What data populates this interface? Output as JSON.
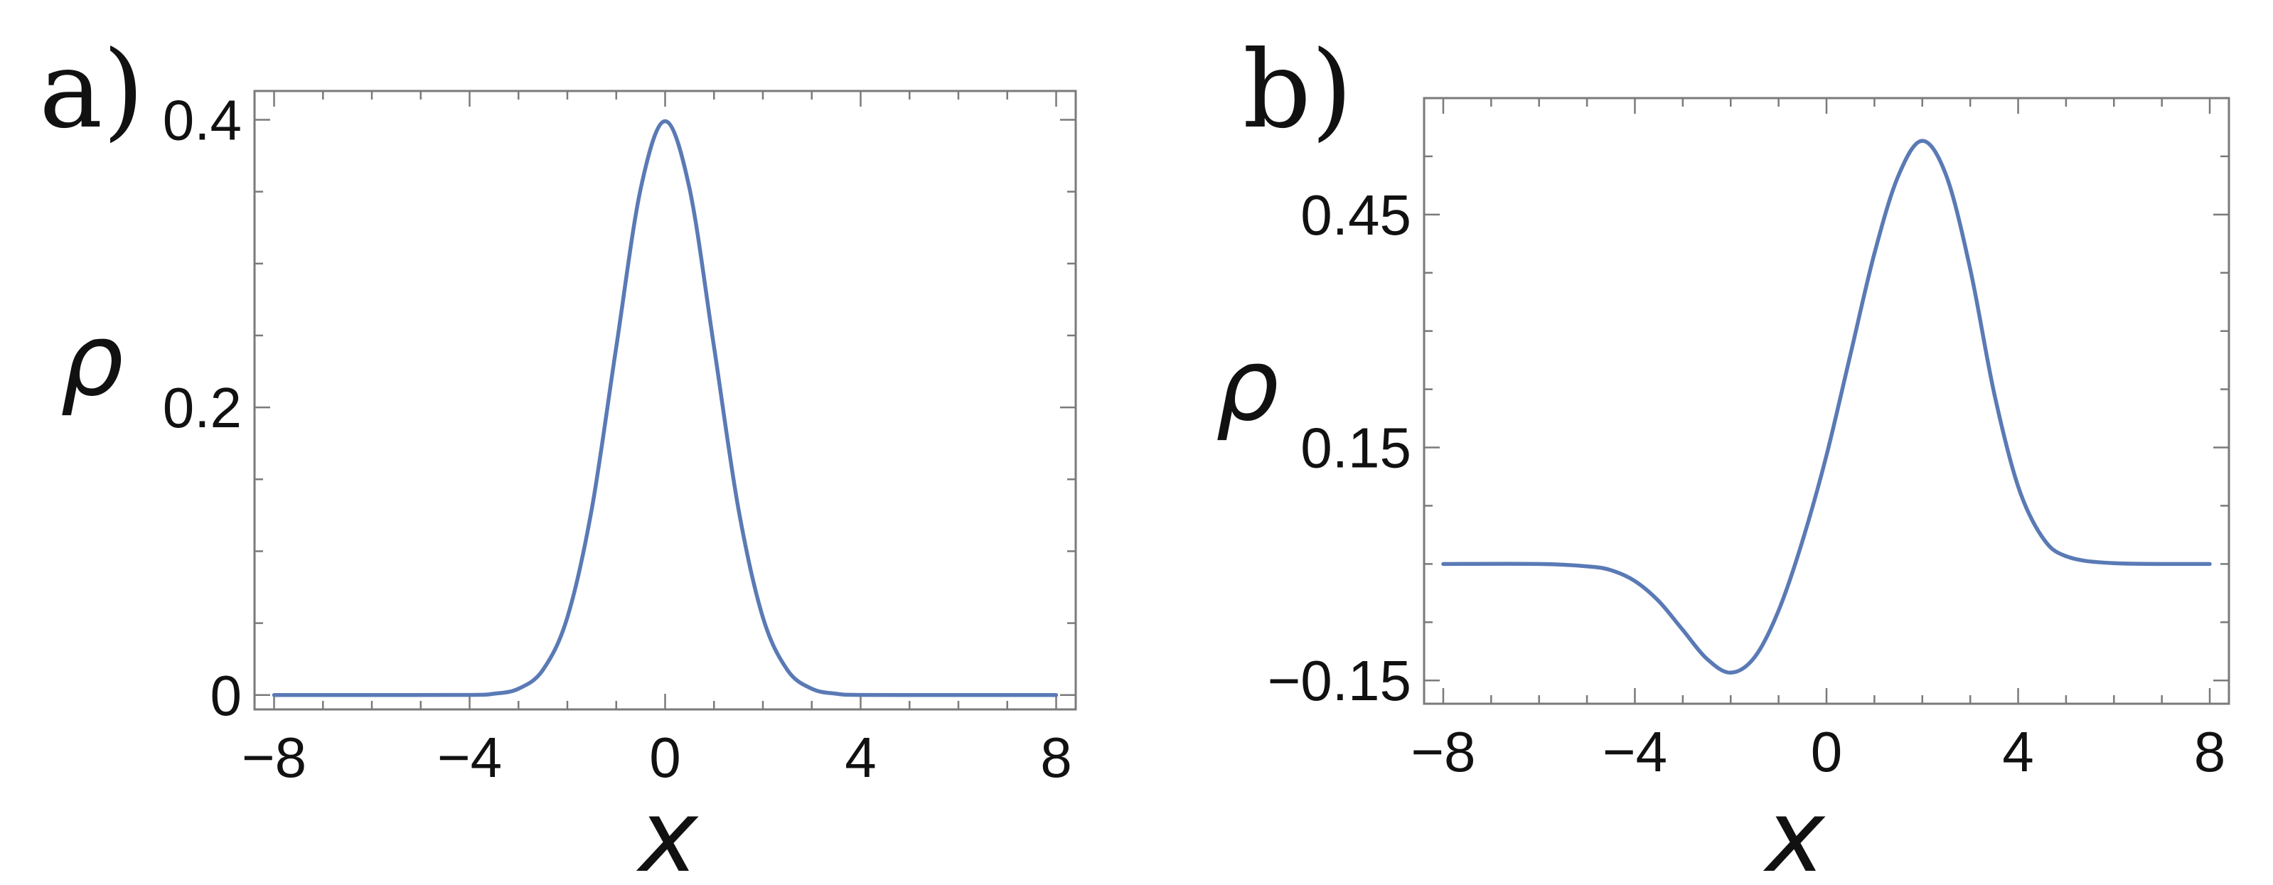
{
  "chart_data": [
    {
      "type": "line",
      "panel_label": "a)",
      "xlabel": "x",
      "ylabel": "ρ",
      "xlim": [
        -8.4,
        8.4
      ],
      "ylim": [
        -0.01,
        0.42
      ],
      "xticks": [
        -8,
        -4,
        0,
        4,
        8
      ],
      "xtick_labels": [
        "−8",
        "−4",
        "0",
        "4",
        "8"
      ],
      "yticks": [
        0,
        0.2,
        0.4
      ],
      "ytick_labels": [
        "0",
        "0.2",
        "0.4"
      ],
      "grid": false,
      "color": "#5a7ab5",
      "series": [
        {
          "x": [
            -8,
            -6,
            -4,
            -3.5,
            -3,
            -2.5,
            -2,
            -1.5,
            -1,
            -0.5,
            0,
            0.5,
            1,
            1.5,
            2,
            2.5,
            3,
            3.5,
            4,
            6,
            8
          ],
          "y": [
            0,
            0,
            0.0001,
            0.0009,
            0.0044,
            0.0175,
            0.054,
            0.1295,
            0.242,
            0.352,
            0.399,
            0.352,
            0.242,
            0.1295,
            0.054,
            0.0175,
            0.0044,
            0.0009,
            0.0001,
            0,
            0
          ]
        }
      ]
    },
    {
      "type": "line",
      "panel_label": "b)",
      "xlabel": "x",
      "ylabel": "ρ",
      "xlim": [
        -8.4,
        8.4
      ],
      "ylim": [
        -0.18,
        0.6
      ],
      "xticks": [
        -8,
        -4,
        0,
        4,
        8
      ],
      "xtick_labels": [
        "−8",
        "−4",
        "0",
        "4",
        "8"
      ],
      "yticks": [
        -0.15,
        0.15,
        0.45
      ],
      "ytick_labels": [
        "−0.15",
        "0.15",
        "0.45"
      ],
      "grid": false,
      "color": "#5a7ab5",
      "series": [
        {
          "x": [
            -8,
            -6,
            -5,
            -4.5,
            -4,
            -3.5,
            -3,
            -2.5,
            -2,
            -1.5,
            -1,
            -0.5,
            0,
            0.5,
            1,
            1.5,
            2,
            2.5,
            3,
            3.5,
            4,
            4.5,
            5,
            6,
            8
          ],
          "y": [
            0,
            0,
            -0.003,
            -0.008,
            -0.022,
            -0.048,
            -0.085,
            -0.122,
            -0.14,
            -0.12,
            -0.06,
            0.03,
            0.14,
            0.27,
            0.4,
            0.5,
            0.545,
            0.5,
            0.38,
            0.22,
            0.1,
            0.035,
            0.01,
            0.001,
            0
          ]
        }
      ]
    }
  ]
}
